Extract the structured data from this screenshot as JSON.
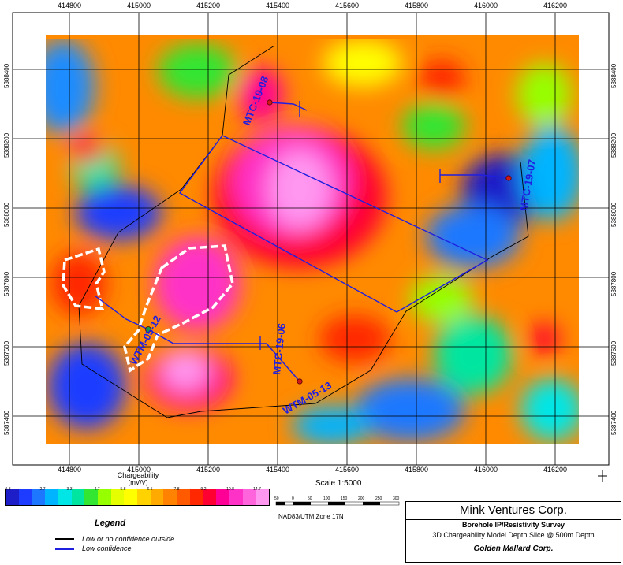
{
  "axes": {
    "easting_ticks": [
      "414800",
      "415000",
      "415200",
      "415400",
      "415600",
      "415800",
      "416000",
      "416200"
    ],
    "northing_ticks": [
      "5388400",
      "5388200",
      "5388000",
      "5387800",
      "5387600",
      "5387400"
    ]
  },
  "drillholes": [
    {
      "name": "MTC-19-08"
    },
    {
      "name": "MTC-19-07"
    },
    {
      "name": "MTC-19-06"
    },
    {
      "name": "WTM-05-12"
    },
    {
      "name": "WTM-05-13"
    }
  ],
  "colorbar": {
    "title": "Chargeability",
    "unit": "(mV/V)",
    "labels": [
      "0.3",
      "2.7",
      "3.3",
      "4.7",
      "5.8",
      "6.5",
      "7.8",
      "9.2",
      "10.8",
      "14.7"
    ],
    "colors": [
      "#1e1ec8",
      "#1e3cff",
      "#1e78ff",
      "#00b4ff",
      "#00e6e6",
      "#00e6a0",
      "#32e632",
      "#96ff00",
      "#e6ff00",
      "#ffff00",
      "#ffd200",
      "#ffaa00",
      "#ff8200",
      "#ff5a00",
      "#ff2800",
      "#ff0032",
      "#ff0096",
      "#ff32c8",
      "#ff64dc",
      "#ff96f0"
    ]
  },
  "legend": {
    "title": "Legend",
    "items": [
      {
        "label": "Low or no confidence outside",
        "color": "#000000"
      },
      {
        "label": "Low confidence",
        "color": "#1f1fe0"
      }
    ]
  },
  "scale": {
    "text": "Scale 1:5000",
    "bar_labels": [
      "50",
      "0",
      "50",
      "100",
      "150",
      "200",
      "250",
      "300"
    ]
  },
  "projection": "NAD83/UTM Zone 17N",
  "titleblock": {
    "company": "Mink Ventures Corp.",
    "survey": "Borehole IP/Resistivity Survey",
    "slice": "3D Chargeability Model Depth Slice @ 500m Depth",
    "client": "Golden Mallard Corp."
  }
}
